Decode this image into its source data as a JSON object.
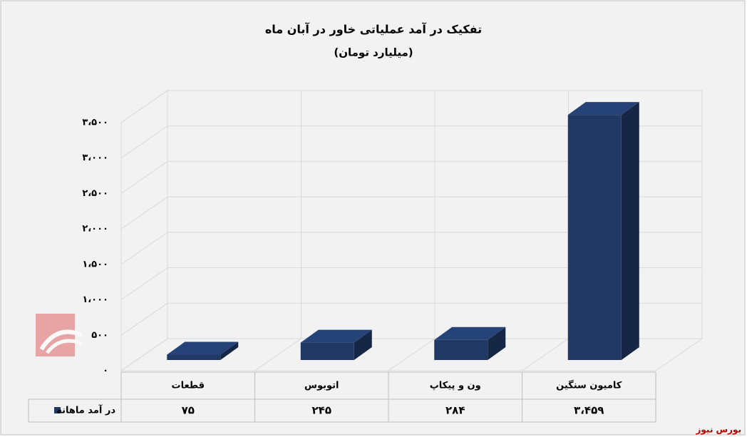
{
  "chart_data": {
    "type": "bar3d",
    "title": "تفکیک در آمد عملیاتی خاور در آبان ماه",
    "subtitle": "(میلیارد تومان)",
    "categories": [
      "قطعات",
      "اتوبوس",
      "ون و پیکاپ",
      "کامیون سنگین"
    ],
    "series": [
      {
        "name": "در آمد ماهانه",
        "color": "#203864",
        "values": [
          75,
          245,
          284,
          3459
        ],
        "value_labels": [
          "۷۵",
          "۲۴۵",
          "۲۸۴",
          "۳،۴۵۹"
        ]
      }
    ],
    "ylim": [
      0,
      3500
    ],
    "yticks": [
      {
        "value": 0,
        "label": "۰"
      },
      {
        "value": 500,
        "label": "۵۰۰"
      },
      {
        "value": 1000,
        "label": "۱،۰۰۰"
      },
      {
        "value": 1500,
        "label": "۱،۵۰۰"
      },
      {
        "value": 2000,
        "label": "۲،۰۰۰"
      },
      {
        "value": 2500,
        "label": "۲،۵۰۰"
      },
      {
        "value": 3000,
        "label": "۳،۰۰۰"
      },
      {
        "value": 3500,
        "label": "۳،۵۰۰"
      }
    ],
    "grid": true,
    "source": "بورس نیوز"
  }
}
